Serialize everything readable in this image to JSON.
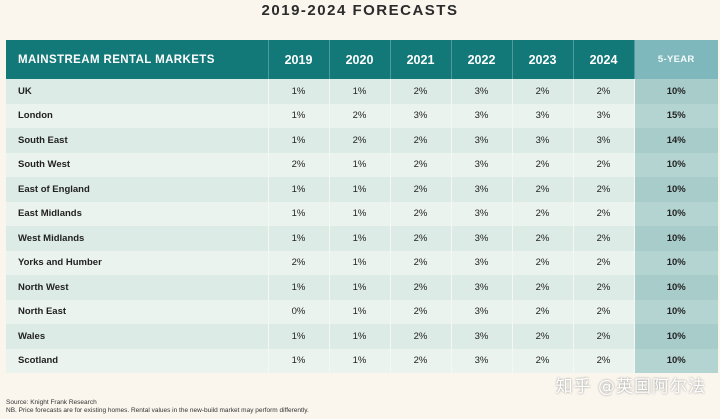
{
  "title": "2019-2024 FORECASTS",
  "table": {
    "header": {
      "label": "MAINSTREAM RENTAL MARKETS",
      "years": [
        "2019",
        "2020",
        "2021",
        "2022",
        "2023",
        "2024"
      ],
      "total": "5-YEAR"
    },
    "rows": [
      {
        "region": "UK",
        "values": [
          "1%",
          "1%",
          "2%",
          "3%",
          "2%",
          "2%"
        ],
        "total": "10%"
      },
      {
        "region": "London",
        "values": [
          "1%",
          "2%",
          "3%",
          "3%",
          "3%",
          "3%"
        ],
        "total": "15%"
      },
      {
        "region": "South East",
        "values": [
          "1%",
          "2%",
          "2%",
          "3%",
          "3%",
          "3%"
        ],
        "total": "14%"
      },
      {
        "region": "South West",
        "values": [
          "2%",
          "1%",
          "2%",
          "3%",
          "2%",
          "2%"
        ],
        "total": "10%"
      },
      {
        "region": "East of England",
        "values": [
          "1%",
          "1%",
          "2%",
          "3%",
          "2%",
          "2%"
        ],
        "total": "10%"
      },
      {
        "region": "East Midlands",
        "values": [
          "1%",
          "1%",
          "2%",
          "3%",
          "2%",
          "2%"
        ],
        "total": "10%"
      },
      {
        "region": "West Midlands",
        "values": [
          "1%",
          "1%",
          "2%",
          "3%",
          "2%",
          "2%"
        ],
        "total": "10%"
      },
      {
        "region": "Yorks and Humber",
        "values": [
          "2%",
          "1%",
          "2%",
          "3%",
          "2%",
          "2%"
        ],
        "total": "10%"
      },
      {
        "region": "North West",
        "values": [
          "1%",
          "1%",
          "2%",
          "3%",
          "2%",
          "2%"
        ],
        "total": "10%"
      },
      {
        "region": "North East",
        "values": [
          "0%",
          "1%",
          "2%",
          "3%",
          "2%",
          "2%"
        ],
        "total": "10%"
      },
      {
        "region": "Wales",
        "values": [
          "1%",
          "1%",
          "2%",
          "3%",
          "2%",
          "2%"
        ],
        "total": "10%"
      },
      {
        "region": "Scotland",
        "values": [
          "1%",
          "1%",
          "2%",
          "3%",
          "2%",
          "2%"
        ],
        "total": "10%"
      }
    ]
  },
  "footer": {
    "source": "Source: Knight Frank Research",
    "note": "NB. Price forecasts are for existing homes. Rental values in the new-build market may perform differently."
  },
  "watermark": "知乎 @英国阿尔法"
}
